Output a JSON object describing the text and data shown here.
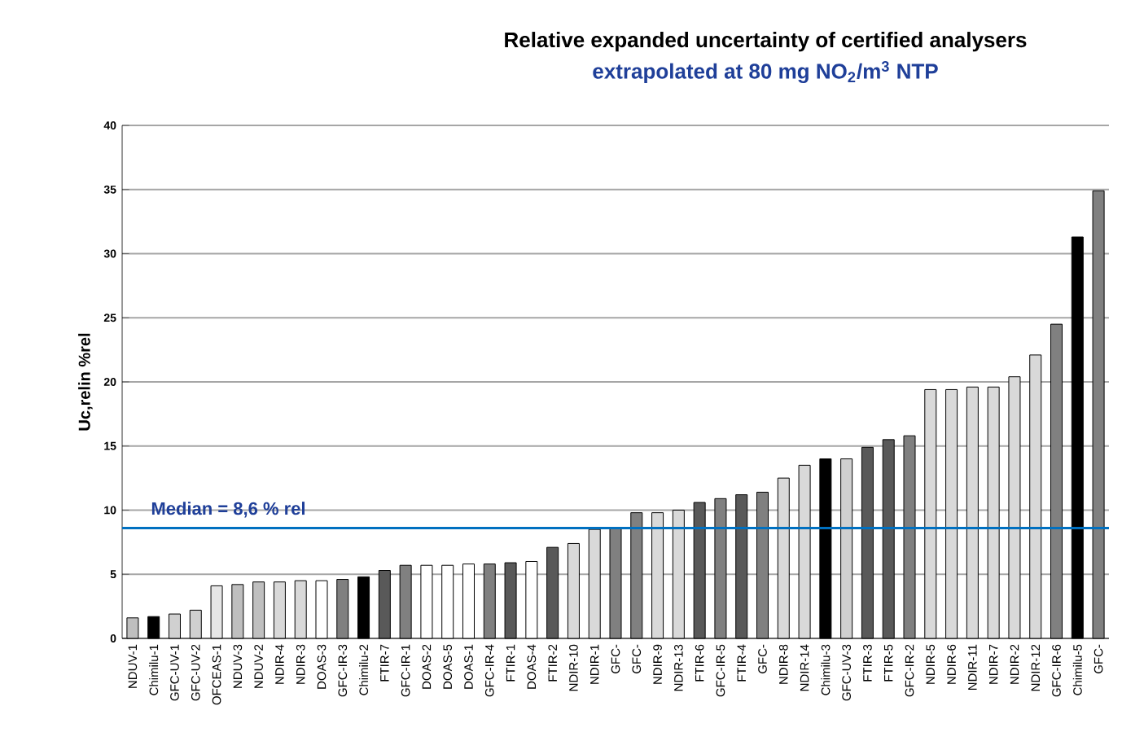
{
  "chart_data": {
    "type": "bar",
    "title": "Relative expanded uncertainty of certified analysers",
    "subtitle": "extrapolated at 80 mg NO$_{2}$/m$^{3}$ NTP",
    "ylabel": "Uc,relin %rel",
    "categories": [
      "NDUV-1",
      "Chimilu-1",
      "GFC-UV-1",
      "GFC-UV-2",
      "OFCEAS-1",
      "NDUV-3",
      "NDUV-2",
      "NDIR-4",
      "NDIR-3",
      "DOAS-3",
      "GFC-IR-3",
      "Chimilu-2",
      "FTIR-7",
      "GFC-IR-1",
      "DOAS-2",
      "DOAS-5",
      "DOAS-1",
      "GFC-IR-4",
      "FTIR-1",
      "DOAS-4",
      "FTIR-2",
      "NDIR-10",
      "NDIR-1",
      "GFC-",
      "GFC-",
      "NDIR-9",
      "NDIR-13",
      "FTIR-6",
      "GFC-IR-5",
      "FTIR-4",
      "GFC-",
      "NDIR-8",
      "NDIR-14",
      "Chimilu-3",
      "GFC-UV-3",
      "FTIR-3",
      "FTIR-5",
      "GFC-IR-2",
      "NDIR-5",
      "NDIR-6",
      "NDIR-11",
      "NDIR-7",
      "NDIR-2",
      "NDIR-12",
      "GFC-IR-6",
      "Chimilu-5",
      "GFC-"
    ],
    "values": [
      1.6,
      1.7,
      1.9,
      2.2,
      4.1,
      4.2,
      4.4,
      4.4,
      4.5,
      4.5,
      4.6,
      4.8,
      5.3,
      5.7,
      5.7,
      5.7,
      5.8,
      5.8,
      5.9,
      6.0,
      7.1,
      7.4,
      8.5,
      8.6,
      9.8,
      9.8,
      10.0,
      10.6,
      10.9,
      11.2,
      11.4,
      12.5,
      13.5,
      14.0,
      14.0,
      14.9,
      15.5,
      15.8,
      19.4,
      19.4,
      19.6,
      19.6,
      20.4,
      22.1,
      24.5,
      31.3,
      34.9
    ],
    "colors": [
      "#bfbfbf",
      "#000000",
      "#d0d0d0",
      "#d0d0d0",
      "#e6e6e6",
      "#bfbfbf",
      "#bfbfbf",
      "#d9d9d9",
      "#d9d9d9",
      "#ffffff",
      "#808080",
      "#000000",
      "#595959",
      "#808080",
      "#ffffff",
      "#ffffff",
      "#ffffff",
      "#808080",
      "#595959",
      "#ffffff",
      "#595959",
      "#d9d9d9",
      "#d9d9d9",
      "#808080",
      "#808080",
      "#d9d9d9",
      "#d9d9d9",
      "#595959",
      "#808080",
      "#595959",
      "#808080",
      "#d9d9d9",
      "#d9d9d9",
      "#000000",
      "#d0d0d0",
      "#595959",
      "#595959",
      "#808080",
      "#d9d9d9",
      "#d9d9d9",
      "#d9d9d9",
      "#d9d9d9",
      "#d9d9d9",
      "#d9d9d9",
      "#808080",
      "#000000",
      "#808080"
    ],
    "ylim": [
      0,
      40
    ],
    "yticks": [
      0,
      5,
      10,
      15,
      20,
      25,
      30,
      35,
      40
    ],
    "grid": "y",
    "ref_lines": [
      {
        "axis": "y",
        "value": 8.6,
        "label": "Median = 8,6 % rel",
        "color": "#0070c0"
      }
    ]
  }
}
